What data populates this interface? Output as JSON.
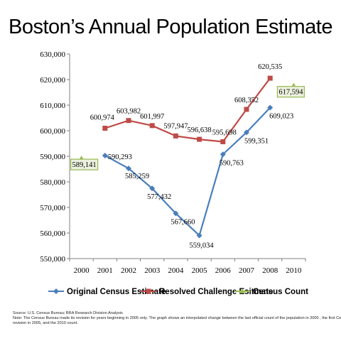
{
  "chart_data": {
    "type": "line",
    "title": "Boston’s Annual Population Estimate",
    "categories": [
      "2000",
      "2001",
      "2002",
      "2003",
      "2004",
      "2005",
      "2006",
      "2007",
      "2008",
      "2010"
    ],
    "ylim": [
      550000,
      630000
    ],
    "yticks": [
      "550,000",
      "560,000",
      "570,000",
      "580,000",
      "590,000",
      "600,000",
      "610,000",
      "620,000",
      "630,000"
    ],
    "grid": false,
    "legend_position": "bottom",
    "series": [
      {
        "name": "Original Census Estimate",
        "color": "#4a7ebb",
        "marker": "diamond",
        "values": [
          null,
          590293,
          585259,
          577432,
          567660,
          559034,
          590763,
          599351,
          609023,
          null
        ],
        "labels": [
          null,
          "590,293",
          "585,259",
          "577,432",
          "567,660",
          "559,034",
          "590,763",
          "599,351",
          "609,023",
          null
        ]
      },
      {
        "name": "Resolved Challenge Esitmate",
        "color": "#be4b48",
        "marker": "square",
        "values": [
          null,
          600974,
          603982,
          601997,
          597947,
          596638,
          595698,
          608352,
          620535,
          null
        ],
        "labels": [
          null,
          "600,974",
          "603,982",
          "601,997",
          "597,947",
          "596,638",
          "595,698",
          "608,352",
          "620,535",
          null
        ]
      },
      {
        "name": "Census Count",
        "color": "#98b954",
        "marker": "triangle",
        "values": [
          589141,
          null,
          null,
          null,
          null,
          null,
          null,
          null,
          null,
          617594
        ],
        "labels": [
          "589,141",
          null,
          null,
          null,
          null,
          null,
          null,
          null,
          null,
          "617,594"
        ]
      }
    ]
  },
  "source": {
    "line1": "Source: U.S. Census Bureau; BRA Research Division Analysis",
    "line2": "Note: The Census Bureau made its revision for years beginning in 2005 only.  The graph shows an interpolated change between the last official count of the population in 2000 , the first Census",
    "line3": "revision in 2005, and the 2010  count."
  }
}
